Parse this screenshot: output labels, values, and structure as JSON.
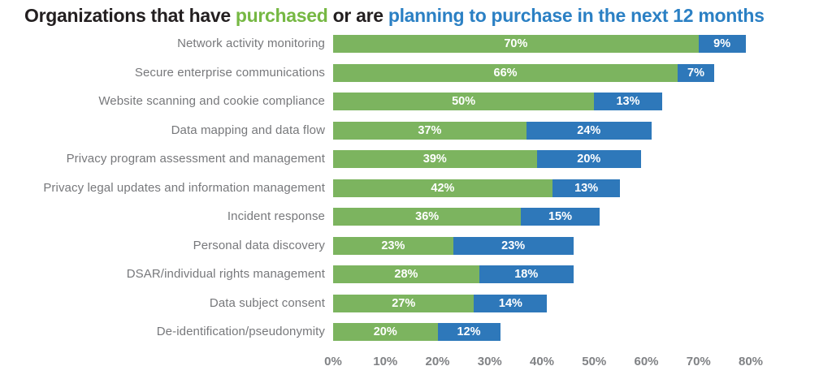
{
  "title": {
    "prefix": "Organizations that have ",
    "purchased": "purchased",
    "middle": " or are ",
    "planning": "planning to purchase in the next 12 months"
  },
  "colors": {
    "title_text": "#231f20",
    "title_green": "#76b843",
    "title_blue": "#2b80c4",
    "bar_green": "#7cb45f",
    "bar_blue": "#2e78ba",
    "category_label_gray": "#77787b",
    "axis_label_gray": "#808285",
    "bar_value_text": "#ffffff",
    "background": "#ffffff"
  },
  "chart_data": {
    "type": "bar",
    "orientation": "horizontal",
    "stacked": true,
    "grid": false,
    "legend_position": "none",
    "title": "Organizations that have purchased or are planning to purchase in the next 12 months",
    "categories": [
      "Network activity monitoring",
      "Secure enterprise communications",
      "Website scanning and cookie compliance",
      "Data mapping and data flow",
      "Privacy program assessment and management",
      "Privacy legal updates and information management",
      "Incident response",
      "Personal data discovery",
      "DSAR/individual rights management",
      "Data subject consent",
      "De-identification/pseudonymity"
    ],
    "series": [
      {
        "name": "purchased",
        "color": "#7cb45f",
        "values": [
          70,
          66,
          50,
          37,
          39,
          42,
          36,
          23,
          28,
          27,
          20
        ]
      },
      {
        "name": "planning to purchase in the next 12 months",
        "color": "#2e78ba",
        "values": [
          9,
          7,
          13,
          24,
          20,
          13,
          15,
          23,
          18,
          14,
          12
        ]
      }
    ],
    "value_suffix": "%",
    "x_ticks": [
      "0%",
      "10%",
      "20%",
      "30%",
      "40%",
      "50%",
      "60%",
      "70%",
      "80%"
    ],
    "xlim": [
      0,
      80
    ],
    "xlabel": "",
    "ylabel": ""
  }
}
